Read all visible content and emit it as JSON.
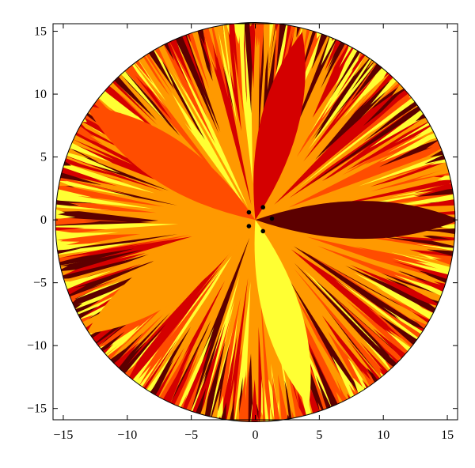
{
  "chart_data": {
    "type": "scatter",
    "x": [
      0.6,
      1.3,
      0.6,
      -0.5,
      -0.5
    ],
    "y": [
      1.0,
      0.1,
      -0.9,
      -0.5,
      0.6
    ],
    "color": "#000000",
    "fill_colors": [
      "#5c0000",
      "#d40000",
      "#ff4d00",
      "#ff9900",
      "#ffff33"
    ],
    "xlim": [
      -15.8,
      15.8
    ],
    "ylim": [
      -15.9,
      15.6
    ],
    "xticks": [
      {
        "value": -15,
        "label": "−15"
      },
      {
        "value": -10,
        "label": "−10"
      },
      {
        "value": -5,
        "label": "−5"
      },
      0,
      5,
      10,
      15
    ],
    "yticks": [
      {
        "value": -15,
        "label": "−15"
      },
      {
        "value": -10,
        "label": "−10"
      },
      {
        "value": -5,
        "label": "−5"
      },
      0,
      5,
      10,
      15
    ]
  }
}
